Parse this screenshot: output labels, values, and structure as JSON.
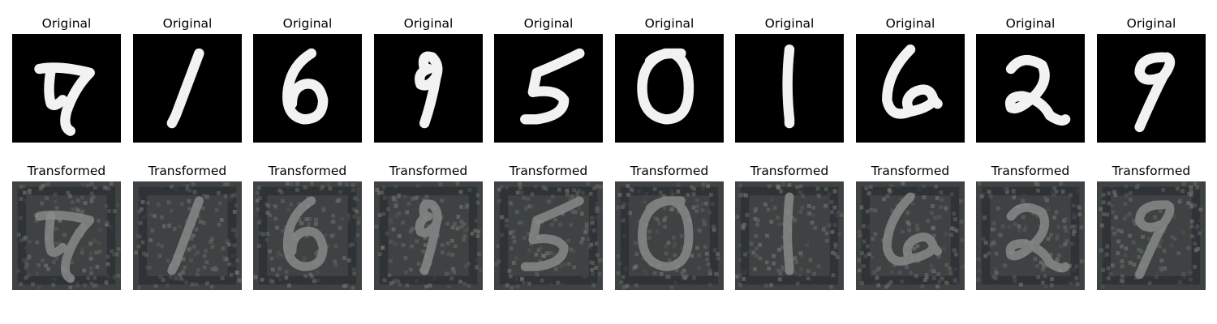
{
  "figure": {
    "row_titles": {
      "original": "Original",
      "transformed": "Transformed"
    },
    "digits": [
      "7",
      "1",
      "6",
      "9",
      "5",
      "0",
      "1",
      "6",
      "2",
      "9"
    ],
    "colors": {
      "original_background": "#000000",
      "original_stroke": "#f2f2f2",
      "transformed_background": "#3f4243",
      "transformed_stroke": "#8a8d8b",
      "transformed_dark_border": "#2a2d31"
    }
  }
}
